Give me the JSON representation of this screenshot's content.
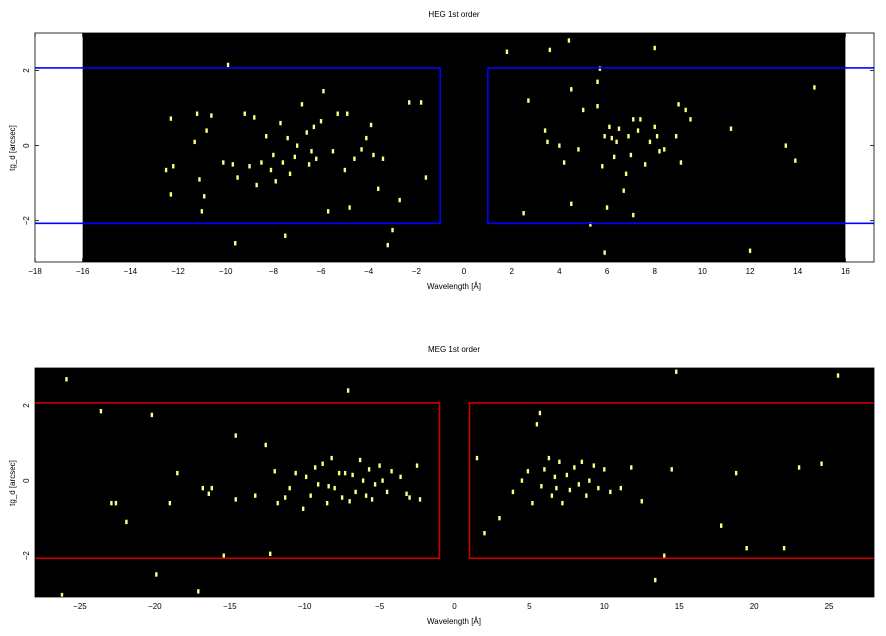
{
  "chart_data": [
    {
      "type": "scatter",
      "title": "HEG 1st order",
      "xlabel": "Wavelength [Å]",
      "ylabel": "tg_d [arcsec]",
      "xlim": [
        -18,
        17.2
      ],
      "ylim": [
        -3.1,
        3.0
      ],
      "data_xlim": [
        -16,
        16
      ],
      "xticks": [
        -18,
        -16,
        -14,
        -12,
        -10,
        -8,
        -6,
        -4,
        -2,
        0,
        2,
        4,
        6,
        8,
        10,
        12,
        14,
        16
      ],
      "yticks": [
        -2,
        0,
        2
      ],
      "grid": false,
      "background": "#000000",
      "point_color": "#ffff80",
      "box_color": "#0000ff",
      "regions": [
        {
          "x": [
            -19,
            -1
          ],
          "y": [
            -2.07,
            2.07
          ]
        },
        {
          "x": [
            1,
            18
          ],
          "y": [
            -2.07,
            2.07
          ]
        }
      ],
      "points": [
        [
          -12.5,
          -0.65
        ],
        [
          -12.3,
          0.72
        ],
        [
          -12.2,
          -0.55
        ],
        [
          -12.3,
          -1.3
        ],
        [
          -11.3,
          0.1
        ],
        [
          -11.1,
          -0.9
        ],
        [
          -11.2,
          0.85
        ],
        [
          -10.9,
          -1.35
        ],
        [
          -11.0,
          -1.75
        ],
        [
          -10.8,
          0.4
        ],
        [
          -10.6,
          0.8
        ],
        [
          -10.1,
          -0.45
        ],
        [
          -9.9,
          2.15
        ],
        [
          -9.7,
          -0.5
        ],
        [
          -9.6,
          -2.6
        ],
        [
          -9.5,
          -0.85
        ],
        [
          -9.2,
          0.85
        ],
        [
          -9.0,
          -0.55
        ],
        [
          -8.8,
          0.75
        ],
        [
          -8.7,
          -1.05
        ],
        [
          -8.5,
          -0.45
        ],
        [
          -8.3,
          0.25
        ],
        [
          -8.1,
          -0.65
        ],
        [
          -8.0,
          -0.25
        ],
        [
          -7.9,
          -0.95
        ],
        [
          -7.7,
          0.6
        ],
        [
          -7.6,
          -0.45
        ],
        [
          -7.5,
          -2.4
        ],
        [
          -7.4,
          0.2
        ],
        [
          -7.3,
          -0.75
        ],
        [
          -7.1,
          -0.3
        ],
        [
          -7.0,
          0.0
        ],
        [
          -6.8,
          1.1
        ],
        [
          -6.6,
          0.35
        ],
        [
          -6.5,
          -0.5
        ],
        [
          -6.4,
          -0.15
        ],
        [
          -6.3,
          0.5
        ],
        [
          -6.2,
          -0.35
        ],
        [
          -6.0,
          0.65
        ],
        [
          -5.9,
          1.45
        ],
        [
          -5.7,
          -1.75
        ],
        [
          -5.5,
          -0.15
        ],
        [
          -5.3,
          0.85
        ],
        [
          -5.0,
          -0.65
        ],
        [
          -4.9,
          0.85
        ],
        [
          -4.8,
          -1.65
        ],
        [
          -4.6,
          -0.35
        ],
        [
          -4.3,
          -0.1
        ],
        [
          -4.1,
          0.2
        ],
        [
          -3.9,
          0.55
        ],
        [
          -3.8,
          -0.25
        ],
        [
          -3.6,
          -1.15
        ],
        [
          -3.4,
          -0.35
        ],
        [
          -3.2,
          -2.65
        ],
        [
          -3.0,
          -2.25
        ],
        [
          -2.7,
          -1.45
        ],
        [
          -2.3,
          1.15
        ],
        [
          -1.8,
          1.15
        ],
        [
          -1.6,
          -0.85
        ],
        [
          1.8,
          2.5
        ],
        [
          2.5,
          -1.8
        ],
        [
          2.7,
          1.2
        ],
        [
          3.4,
          0.4
        ],
        [
          3.5,
          0.1
        ],
        [
          3.6,
          2.55
        ],
        [
          4.0,
          0.0
        ],
        [
          4.2,
          -0.45
        ],
        [
          4.4,
          2.8
        ],
        [
          4.5,
          1.5
        ],
        [
          4.5,
          -1.55
        ],
        [
          4.8,
          -0.1
        ],
        [
          5.0,
          0.95
        ],
        [
          5.3,
          -2.1
        ],
        [
          5.6,
          1.05
        ],
        [
          5.6,
          1.7
        ],
        [
          5.7,
          2.05
        ],
        [
          5.8,
          -0.55
        ],
        [
          5.9,
          -2.85
        ],
        [
          5.9,
          0.25
        ],
        [
          6.0,
          -1.65
        ],
        [
          6.1,
          0.5
        ],
        [
          6.2,
          0.2
        ],
        [
          6.3,
          -0.3
        ],
        [
          6.4,
          0.1
        ],
        [
          6.5,
          0.45
        ],
        [
          6.7,
          -1.2
        ],
        [
          6.8,
          -0.75
        ],
        [
          6.9,
          0.25
        ],
        [
          7.0,
          -0.25
        ],
        [
          7.1,
          -1.85
        ],
        [
          7.1,
          0.7
        ],
        [
          7.3,
          0.4
        ],
        [
          7.4,
          0.7
        ],
        [
          7.6,
          -0.5
        ],
        [
          7.8,
          0.1
        ],
        [
          8.0,
          0.5
        ],
        [
          8.0,
          2.6
        ],
        [
          8.1,
          0.25
        ],
        [
          8.2,
          -0.15
        ],
        [
          8.4,
          -0.1
        ],
        [
          8.9,
          0.25
        ],
        [
          9.0,
          1.1
        ],
        [
          9.1,
          -0.45
        ],
        [
          9.3,
          0.95
        ],
        [
          9.5,
          0.7
        ],
        [
          11.2,
          0.45
        ],
        [
          12.0,
          -2.8
        ],
        [
          13.5,
          0.0
        ],
        [
          13.9,
          -0.4
        ],
        [
          14.7,
          1.55
        ]
      ]
    },
    {
      "type": "scatter",
      "title": "MEG 1st order",
      "xlabel": "Wavelength [Å]",
      "ylabel": "tg_d [arcsec]",
      "xlim": [
        -28,
        28
      ],
      "ylim": [
        -3.1,
        3.0
      ],
      "xticks": [
        -25,
        -20,
        -15,
        -10,
        -5,
        0,
        5,
        10,
        15,
        20,
        25
      ],
      "yticks": [
        -2,
        0,
        2
      ],
      "grid": false,
      "background": "#000000",
      "point_color": "#ffff80",
      "box_color": "#cc0000",
      "regions": [
        {
          "x": [
            -29,
            -1
          ],
          "y": [
            -2.07,
            2.07
          ]
        },
        {
          "x": [
            1,
            29
          ],
          "y": [
            -2.07,
            2.07
          ]
        }
      ],
      "points": [
        [
          -26.2,
          -3.05
        ],
        [
          -25.9,
          2.7
        ],
        [
          -23.6,
          1.85
        ],
        [
          -22.9,
          -0.6
        ],
        [
          -22.6,
          -0.6
        ],
        [
          -21.9,
          -1.1
        ],
        [
          -20.2,
          1.75
        ],
        [
          -19.9,
          -2.5
        ],
        [
          -19.0,
          -0.6
        ],
        [
          -18.5,
          0.2
        ],
        [
          -17.1,
          -2.95
        ],
        [
          -16.8,
          -0.2
        ],
        [
          -16.4,
          -0.35
        ],
        [
          -16.2,
          -0.2
        ],
        [
          -15.4,
          -2.0
        ],
        [
          -14.6,
          1.2
        ],
        [
          -14.6,
          -0.5
        ],
        [
          -13.3,
          -0.4
        ],
        [
          -12.6,
          0.95
        ],
        [
          -12.3,
          -1.95
        ],
        [
          -12.0,
          0.25
        ],
        [
          -11.8,
          -0.6
        ],
        [
          -11.3,
          -0.45
        ],
        [
          -11.0,
          -0.2
        ],
        [
          -10.6,
          0.2
        ],
        [
          -10.1,
          -0.75
        ],
        [
          -9.9,
          0.1
        ],
        [
          -9.6,
          -0.4
        ],
        [
          -9.3,
          0.35
        ],
        [
          -9.1,
          -0.1
        ],
        [
          -8.8,
          0.45
        ],
        [
          -8.5,
          -0.6
        ],
        [
          -8.4,
          -0.15
        ],
        [
          -8.2,
          0.6
        ],
        [
          -8.0,
          -0.2
        ],
        [
          -7.7,
          0.2
        ],
        [
          -7.5,
          -0.45
        ],
        [
          -7.3,
          0.2
        ],
        [
          -7.1,
          2.4
        ],
        [
          -7.0,
          -0.55
        ],
        [
          -6.8,
          0.15
        ],
        [
          -6.6,
          -0.3
        ],
        [
          -6.3,
          0.55
        ],
        [
          -6.1,
          0.0
        ],
        [
          -5.9,
          -0.4
        ],
        [
          -5.7,
          0.3
        ],
        [
          -5.5,
          -0.5
        ],
        [
          -5.3,
          -0.1
        ],
        [
          -5.0,
          0.4
        ],
        [
          -4.8,
          0.0
        ],
        [
          -4.5,
          -0.3
        ],
        [
          -4.2,
          0.25
        ],
        [
          -3.6,
          0.1
        ],
        [
          -3.2,
          -0.35
        ],
        [
          -3.0,
          -0.45
        ],
        [
          -2.5,
          0.4
        ],
        [
          -2.3,
          -0.5
        ],
        [
          1.5,
          0.6
        ],
        [
          2.0,
          -1.4
        ],
        [
          3.0,
          -1.0
        ],
        [
          3.9,
          -0.3
        ],
        [
          4.5,
          0.0
        ],
        [
          4.9,
          0.25
        ],
        [
          5.2,
          -0.6
        ],
        [
          5.5,
          1.5
        ],
        [
          5.7,
          1.8
        ],
        [
          5.8,
          -0.15
        ],
        [
          6.0,
          0.3
        ],
        [
          6.3,
          0.6
        ],
        [
          6.5,
          -0.4
        ],
        [
          6.7,
          0.1
        ],
        [
          6.8,
          -0.2
        ],
        [
          7.0,
          0.5
        ],
        [
          7.2,
          -0.6
        ],
        [
          7.5,
          0.15
        ],
        [
          7.7,
          -0.25
        ],
        [
          8.0,
          0.35
        ],
        [
          8.3,
          -0.1
        ],
        [
          8.5,
          0.5
        ],
        [
          8.8,
          -0.4
        ],
        [
          9.0,
          0.0
        ],
        [
          9.3,
          0.4
        ],
        [
          9.6,
          -0.2
        ],
        [
          10.0,
          0.3
        ],
        [
          10.4,
          -0.3
        ],
        [
          11.1,
          -0.2
        ],
        [
          11.8,
          0.35
        ],
        [
          12.5,
          -0.55
        ],
        [
          13.4,
          -2.65
        ],
        [
          14.0,
          -2.0
        ],
        [
          14.5,
          0.3
        ],
        [
          14.8,
          2.9
        ],
        [
          17.8,
          -1.2
        ],
        [
          18.8,
          0.2
        ],
        [
          19.5,
          -1.8
        ],
        [
          22.0,
          -1.8
        ],
        [
          23.0,
          0.35
        ],
        [
          24.5,
          0.45
        ],
        [
          25.6,
          2.8
        ]
      ]
    }
  ]
}
